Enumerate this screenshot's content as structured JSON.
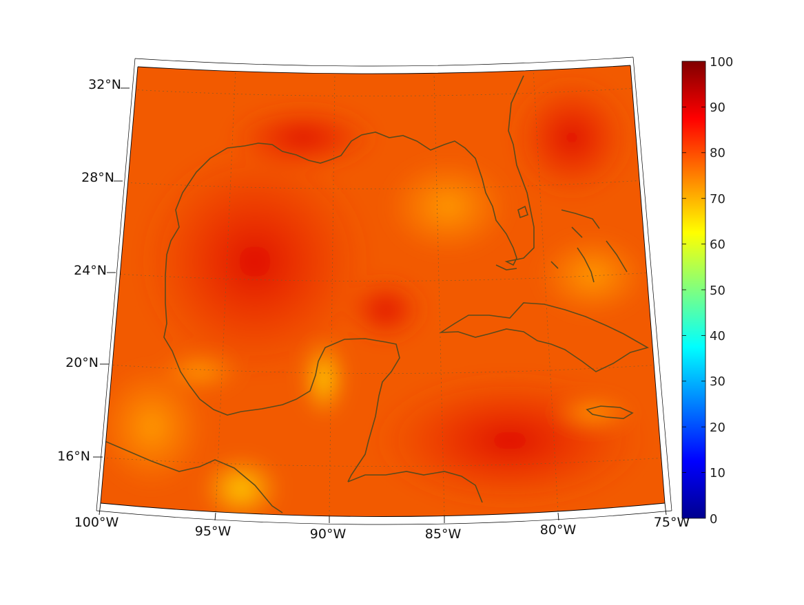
{
  "map": {
    "lat_labels": [
      "32°N",
      "28°N",
      "24°N",
      "20°N",
      "16°N"
    ],
    "lon_labels": [
      "100°W",
      "95°W",
      "90°W",
      "85°W",
      "80°W",
      "75°W"
    ],
    "extent": {
      "lon_min": -100,
      "lon_max": -75,
      "lat_min": 14,
      "lat_max": 33
    }
  },
  "colorbar": {
    "ticks": [
      "100",
      "90",
      "80",
      "70",
      "60",
      "50",
      "40",
      "30",
      "20",
      "10",
      "0"
    ],
    "range": [
      0,
      100
    ],
    "colormap": "jet"
  },
  "colors": {
    "coastline": "#5a4a1c",
    "frame": "#000000",
    "grid": "#7a5a2a"
  }
}
